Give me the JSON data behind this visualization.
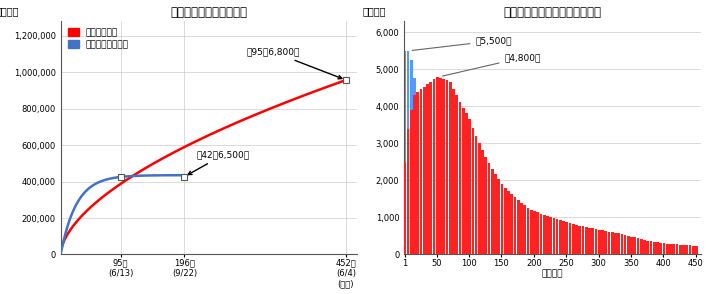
{
  "title_left": "【部隊派遣数（延べ）】",
  "title_right": "【部隊派遣数（１日当たり）】",
  "ylabel": "（人数）",
  "xlabel_right": "（日数）",
  "legend_east": "東日本大震災",
  "legend_hanshin": "阪神・淡路大震災",
  "color_east": "#FF0000",
  "color_hanshin": "#4472C4",
  "color_east_bar": "#FF2222",
  "color_hanshin_bar": "#5599FF",
  "xtick_left": [
    95,
    196,
    452
  ],
  "xtick_left_labels": [
    "95日\n(6/13)",
    "196日\n(9/22)",
    "452日\n(6/4)\n(日数)"
  ],
  "ytick_left": [
    0,
    200000,
    400000,
    600000,
    800000,
    1000000,
    1200000
  ],
  "ytick_left_labels": [
    "0",
    "200,000",
    "400,000",
    "600,000",
    "800,000",
    "1,000,000",
    "1,200,000"
  ],
  "xlim_left": [
    0,
    470
  ],
  "ylim_left": [
    0,
    1280000
  ],
  "annotation1_text": "約95万6,800人",
  "annotation2_text": "約42万6,500人",
  "xtick_right": [
    1,
    50,
    100,
    150,
    200,
    250,
    300,
    350,
    400,
    450
  ],
  "ytick_right": [
    0,
    1000,
    2000,
    3000,
    4000,
    5000,
    6000
  ],
  "ytick_right_labels": [
    "0",
    "1,000",
    "2,000",
    "3,000",
    "4,000",
    "5,000",
    "6,000"
  ],
  "xlim_right": [
    0,
    458
  ],
  "ylim_right": [
    0,
    6300
  ],
  "ann_right1_text": "約5,500人",
  "ann_right2_text": "約4,800人",
  "bg_color": "#FFFFFF",
  "grid_color": "#CCCCCC",
  "spine_color": "#999999"
}
